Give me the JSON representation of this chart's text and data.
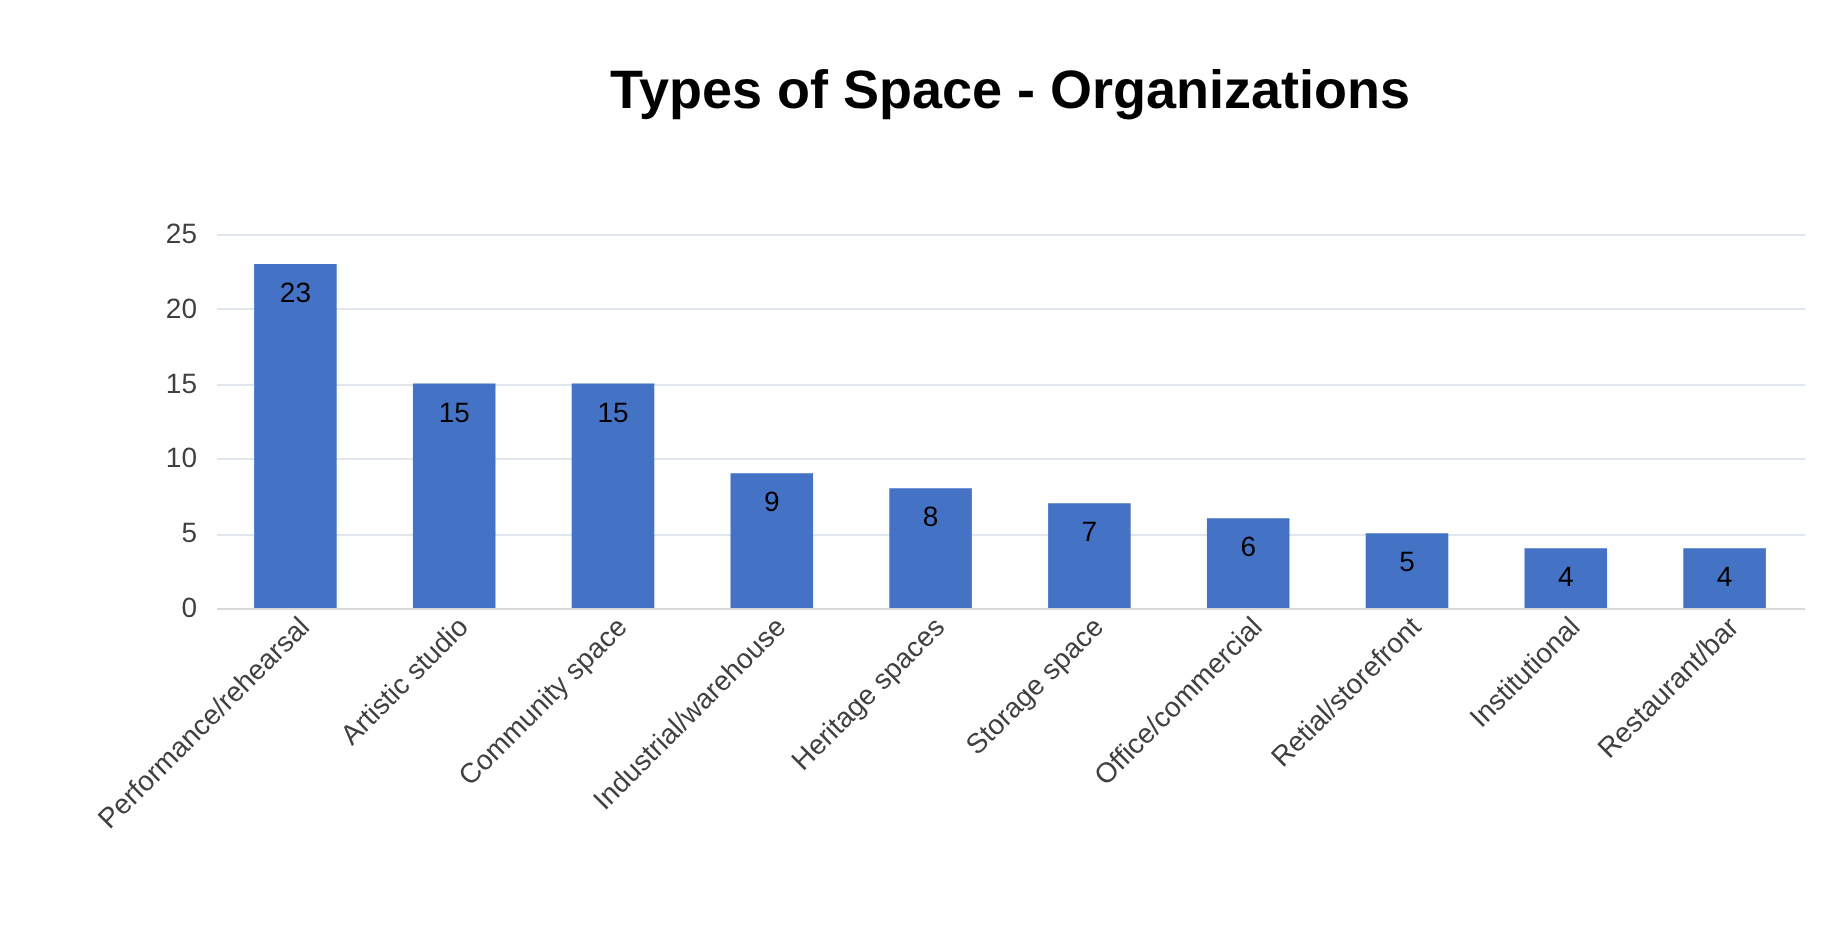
{
  "chart_data": {
    "type": "bar",
    "title": "Types of Space - Organizations",
    "categories": [
      "Performance/rehearsal",
      "Artistic studio",
      "Community space",
      "Industrial/warehouse",
      "Heritage spaces",
      "Storage space",
      "Office/commercial",
      "Retial/storefront",
      "Institutional",
      "Restaurant/bar"
    ],
    "values": [
      23,
      15,
      15,
      9,
      8,
      7,
      6,
      5,
      4,
      4
    ],
    "color": "#4472c4",
    "ylim": [
      0,
      25
    ],
    "yticks": [
      0,
      5,
      10,
      15,
      20,
      25
    ],
    "grid": "y",
    "data_labels": true
  }
}
